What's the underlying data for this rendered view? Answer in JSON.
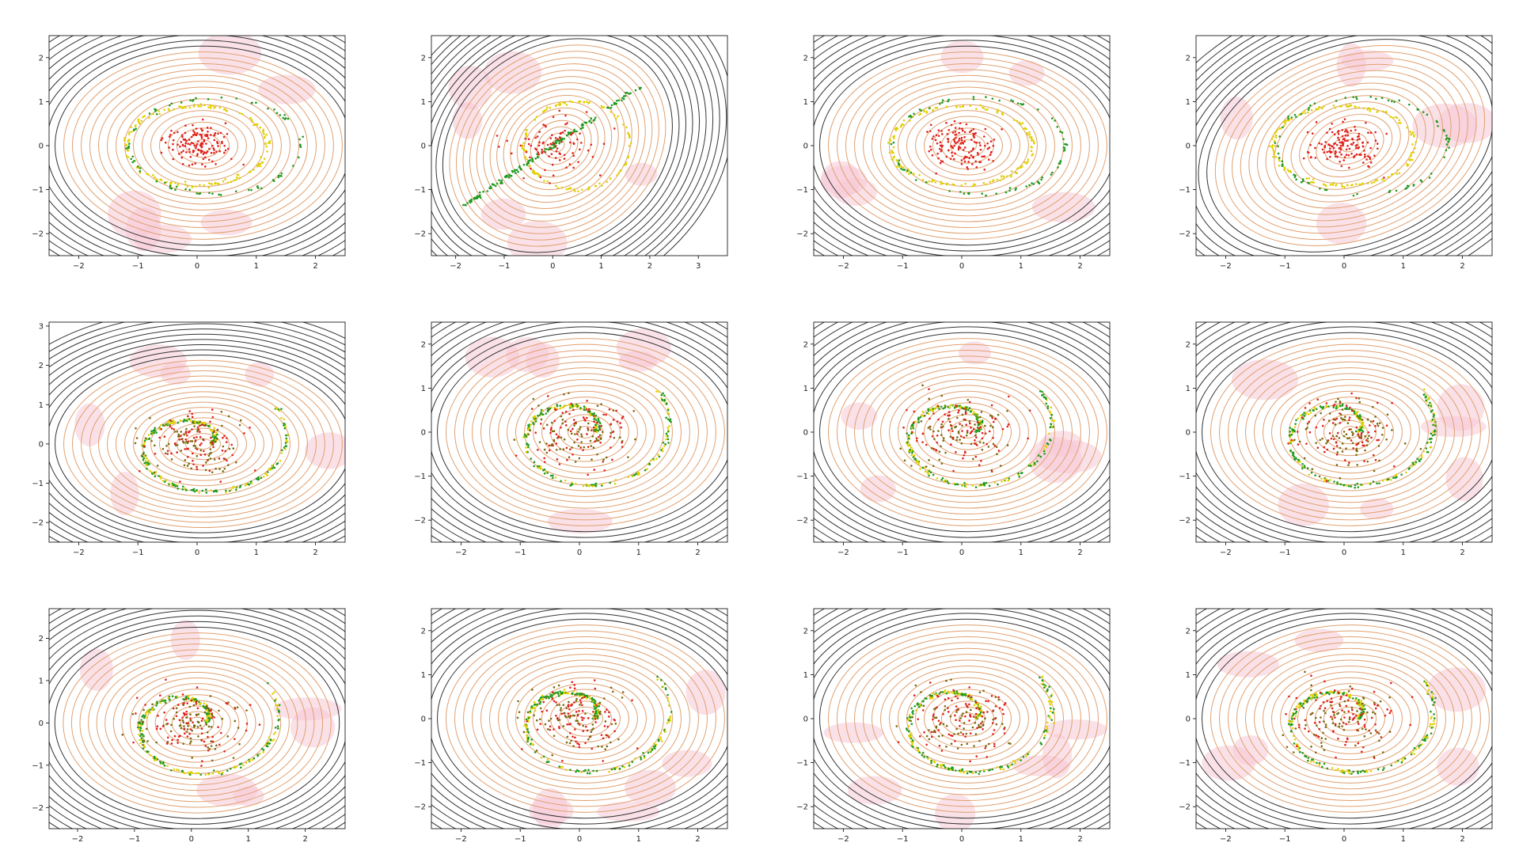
{
  "figure": {
    "rows": 3,
    "cols": 4
  },
  "colors": {
    "background": "#ffffff",
    "axes_frame": "#000000",
    "contour_dark": "#333333",
    "contour_orange": "#e0a070",
    "pink_fill": "#f6c8d6",
    "points_red": "#e0201c",
    "points_green": "#1f9a1f",
    "points_yellow": "#e2d000",
    "points_olive": "#7a6a10"
  },
  "chart_data": [
    {
      "panel": "r1c1",
      "type": "scatter",
      "pattern": "ring",
      "overlay": "contour",
      "xlim": [
        -2.5,
        2.5
      ],
      "ylim": [
        -2.5,
        2.5
      ],
      "xticks": [
        "−2",
        "−1",
        "0",
        "1",
        "2"
      ],
      "yticks": [
        "−2",
        "−1",
        "0",
        "1",
        "2"
      ],
      "grid": false,
      "legend": "none"
    },
    {
      "panel": "r1c2",
      "type": "scatter",
      "pattern": "diagonal",
      "overlay": "contour",
      "xlim": [
        -2.5,
        3.6
      ],
      "ylim": [
        -2.5,
        2.5
      ],
      "xticks": [
        "−2",
        "−1",
        "0",
        "1",
        "2",
        "3"
      ],
      "yticks": [
        "−2",
        "−1",
        "0",
        "1",
        "2"
      ],
      "grid": false,
      "legend": "none"
    },
    {
      "panel": "r1c3",
      "type": "scatter",
      "pattern": "ring",
      "overlay": "contour",
      "xlim": [
        -2.5,
        2.5
      ],
      "ylim": [
        -2.5,
        2.5
      ],
      "xticks": [
        "−2",
        "−1",
        "0",
        "1",
        "2"
      ],
      "yticks": [
        "−2",
        "−1",
        "0",
        "1",
        "2"
      ],
      "grid": false,
      "legend": "none"
    },
    {
      "panel": "r1c4",
      "type": "scatter",
      "pattern": "ring_tilted",
      "overlay": "contour",
      "xlim": [
        -2.5,
        2.5
      ],
      "ylim": [
        -2.5,
        2.5
      ],
      "xticks": [
        "−2",
        "−1",
        "0",
        "1",
        "2"
      ],
      "yticks": [
        "−2",
        "−1",
        "0",
        "1",
        "2"
      ],
      "grid": false,
      "legend": "none"
    },
    {
      "panel": "r2c1",
      "type": "scatter",
      "pattern": "spiral",
      "overlay": "contour",
      "xlim": [
        -2.5,
        2.5
      ],
      "ylim": [
        -2.5,
        3.1
      ],
      "xticks": [
        "−2",
        "−1",
        "0",
        "1",
        "2"
      ],
      "yticks": [
        "−2",
        "−1",
        "0",
        "1",
        "2",
        "3"
      ],
      "grid": false,
      "legend": "none"
    },
    {
      "panel": "r2c2",
      "type": "scatter",
      "pattern": "spiral",
      "overlay": "contour",
      "xlim": [
        -2.5,
        2.5
      ],
      "ylim": [
        -2.5,
        2.5
      ],
      "xticks": [
        "−2",
        "−1",
        "0",
        "1",
        "2"
      ],
      "yticks": [
        "−2",
        "−1",
        "0",
        "1",
        "2"
      ],
      "grid": false,
      "legend": "none"
    },
    {
      "panel": "r2c3",
      "type": "scatter",
      "pattern": "spiral",
      "overlay": "contour",
      "xlim": [
        -2.5,
        2.5
      ],
      "ylim": [
        -2.5,
        2.5
      ],
      "xticks": [
        "−2",
        "−1",
        "0",
        "1",
        "2"
      ],
      "yticks": [
        "−2",
        "−1",
        "0",
        "1",
        "2"
      ],
      "grid": false,
      "legend": "none"
    },
    {
      "panel": "r2c4",
      "type": "scatter",
      "pattern": "spiral",
      "overlay": "contour",
      "xlim": [
        -2.5,
        2.5
      ],
      "ylim": [
        -2.5,
        2.5
      ],
      "xticks": [
        "−2",
        "−1",
        "0",
        "1",
        "2"
      ],
      "yticks": [
        "−2",
        "−1",
        "0",
        "1",
        "2"
      ],
      "grid": false,
      "legend": "none"
    },
    {
      "panel": "r3c1",
      "type": "scatter",
      "pattern": "spiral",
      "overlay": "contour",
      "xlim": [
        -2.5,
        2.7
      ],
      "ylim": [
        -2.5,
        2.7
      ],
      "xticks": [
        "−2",
        "−1",
        "0",
        "1",
        "2"
      ],
      "yticks": [
        "−2",
        "−1",
        "0",
        "1",
        "2"
      ],
      "grid": false,
      "legend": "none"
    },
    {
      "panel": "r3c2",
      "type": "scatter",
      "pattern": "spiral",
      "overlay": "contour",
      "xlim": [
        -2.5,
        2.5
      ],
      "ylim": [
        -2.5,
        2.5
      ],
      "xticks": [
        "−2",
        "−1",
        "0",
        "1",
        "2"
      ],
      "yticks": [
        "−2",
        "−1",
        "0",
        "1",
        "2"
      ],
      "grid": false,
      "legend": "none"
    },
    {
      "panel": "r3c3",
      "type": "scatter",
      "pattern": "spiral",
      "overlay": "contour",
      "xlim": [
        -2.5,
        2.5
      ],
      "ylim": [
        -2.5,
        2.5
      ],
      "xticks": [
        "−2",
        "−1",
        "0",
        "1",
        "2"
      ],
      "yticks": [
        "−2",
        "−1",
        "0",
        "1",
        "2"
      ],
      "grid": false,
      "legend": "none"
    },
    {
      "panel": "r3c4",
      "type": "scatter",
      "pattern": "spiral",
      "overlay": "contour",
      "xlim": [
        -2.5,
        2.5
      ],
      "ylim": [
        -2.5,
        2.5
      ],
      "xticks": [
        "−2",
        "−1",
        "0",
        "1",
        "2"
      ],
      "yticks": [
        "−2",
        "−1",
        "0",
        "1",
        "2"
      ],
      "grid": false,
      "legend": "none"
    }
  ]
}
